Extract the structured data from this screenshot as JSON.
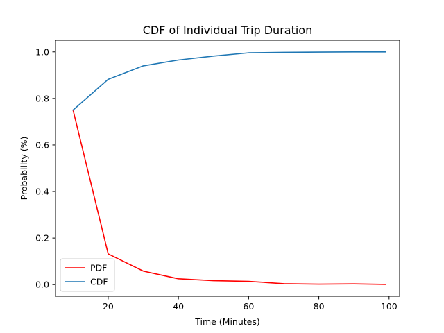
{
  "chart_data": {
    "type": "line",
    "title": "CDF of Individual Trip Duration",
    "xlabel": "Time (Minutes)",
    "ylabel": "Probability (%)",
    "xlim": [
      5,
      103
    ],
    "ylim": [
      -0.05,
      1.05
    ],
    "xticks": [
      20,
      40,
      60,
      80,
      100
    ],
    "yticks": [
      0.0,
      0.2,
      0.4,
      0.6,
      0.8,
      1.0
    ],
    "xtick_labels": [
      "20",
      "40",
      "60",
      "80",
      "100"
    ],
    "ytick_labels": [
      "0.0",
      "0.2",
      "0.4",
      "0.6",
      "0.8",
      "1.0"
    ],
    "grid": false,
    "legend_position": "lower-left",
    "x": [
      10,
      20,
      30,
      40,
      50,
      60,
      70,
      80,
      90,
      99
    ],
    "series": [
      {
        "name": "PDF",
        "color": "#ff0000",
        "values": [
          0.75,
          0.132,
          0.058,
          0.025,
          0.017,
          0.014,
          0.004,
          0.002,
          0.003,
          0.001
        ]
      },
      {
        "name": "CDF",
        "color": "#1f77b4",
        "values": [
          0.75,
          0.882,
          0.94,
          0.965,
          0.982,
          0.996,
          0.998,
          0.999,
          1.0,
          1.0
        ]
      }
    ]
  }
}
